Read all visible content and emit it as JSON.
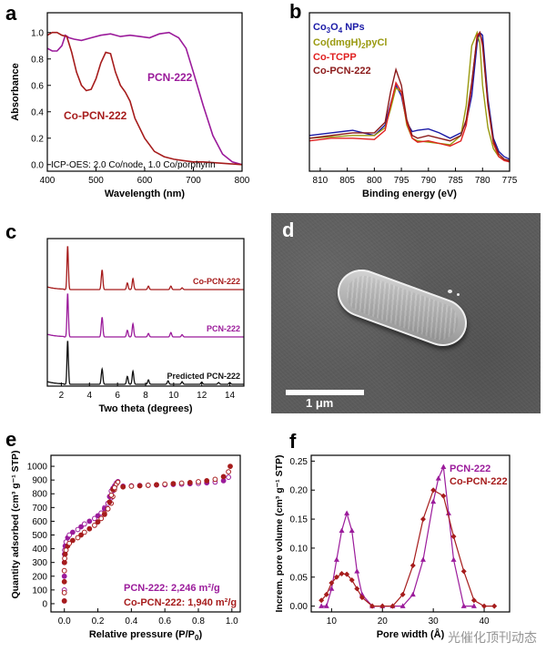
{
  "chart_data": [
    {
      "panel": "a",
      "type": "line",
      "xlabel": "Wavelength (nm)",
      "ylabel": "Absorbance",
      "xlim": [
        400,
        800
      ],
      "ylim": [
        -0.05,
        1.15
      ],
      "xticks": [
        400,
        500,
        600,
        700,
        800
      ],
      "yticks": [
        0.0,
        0.2,
        0.4,
        0.6,
        0.8,
        1.0
      ],
      "annotation": "ICP-OES: 2.0 Co/node, 1.0 Co/porphyrin",
      "series": [
        {
          "name": "PCN-222",
          "color": "#9b1b9b",
          "x": [
            400,
            410,
            420,
            430,
            437,
            445,
            455,
            470,
            490,
            510,
            530,
            550,
            570,
            590,
            610,
            630,
            650,
            660,
            670,
            685,
            700,
            720,
            740,
            760,
            780,
            800
          ],
          "y": [
            0.88,
            0.86,
            0.86,
            0.9,
            0.98,
            0.96,
            0.95,
            0.94,
            0.96,
            0.98,
            0.99,
            0.97,
            0.98,
            0.97,
            0.96,
            0.99,
            1.0,
            0.98,
            0.96,
            0.88,
            0.7,
            0.45,
            0.22,
            0.08,
            0.02,
            0.0
          ]
        },
        {
          "name": "Co-PCN-222",
          "color": "#a61c1c",
          "x": [
            400,
            410,
            420,
            430,
            440,
            450,
            460,
            470,
            480,
            490,
            500,
            510,
            520,
            530,
            540,
            550,
            560,
            570,
            580,
            600,
            620,
            640,
            660,
            680,
            700,
            720,
            760,
            800
          ],
          "y": [
            0.98,
            1.0,
            1.0,
            0.98,
            0.97,
            0.85,
            0.7,
            0.6,
            0.56,
            0.57,
            0.65,
            0.77,
            0.85,
            0.84,
            0.7,
            0.6,
            0.55,
            0.48,
            0.35,
            0.2,
            0.1,
            0.06,
            0.04,
            0.03,
            0.02,
            0.02,
            0.01,
            0.0
          ]
        }
      ]
    },
    {
      "panel": "b",
      "type": "line",
      "xlabel": "Binding energy (eV)",
      "xlim": [
        812,
        775
      ],
      "xticks": [
        810,
        805,
        800,
        795,
        790,
        785,
        780,
        775
      ],
      "series": [
        {
          "name": "Co3O4 NPs",
          "color": "#1a1aa6",
          "x": [
            812,
            808,
            804,
            800,
            798,
            797,
            796,
            795,
            794,
            793,
            792,
            790,
            788,
            786,
            784,
            783,
            782,
            781,
            780.5,
            780,
            779,
            778,
            777,
            776,
            775
          ],
          "y": [
            0.22,
            0.24,
            0.26,
            0.22,
            0.3,
            0.46,
            0.6,
            0.52,
            0.32,
            0.25,
            0.26,
            0.27,
            0.24,
            0.2,
            0.24,
            0.32,
            0.52,
            0.92,
            1.0,
            0.98,
            0.5,
            0.2,
            0.1,
            0.06,
            0.04
          ]
        },
        {
          "name": "Co(dmgH)2pyCl",
          "color": "#9a9a10",
          "x": [
            812,
            808,
            804,
            800,
            798,
            797,
            796,
            795,
            794,
            793,
            792,
            790,
            788,
            786,
            784,
            783,
            782,
            781,
            780.5,
            780,
            779,
            778,
            777,
            776,
            775
          ],
          "y": [
            0.2,
            0.21,
            0.22,
            0.22,
            0.28,
            0.42,
            0.58,
            0.55,
            0.3,
            0.2,
            0.18,
            0.17,
            0.16,
            0.15,
            0.22,
            0.45,
            0.9,
            1.0,
            0.92,
            0.6,
            0.28,
            0.12,
            0.06,
            0.04,
            0.03
          ]
        },
        {
          "name": "Co-TCPP",
          "color": "#e02020",
          "x": [
            812,
            808,
            804,
            800,
            798,
            797,
            796,
            795,
            794,
            793,
            792,
            790,
            788,
            786,
            784,
            783,
            782,
            781,
            780.5,
            780,
            779,
            778,
            777,
            776,
            775
          ],
          "y": [
            0.18,
            0.2,
            0.2,
            0.19,
            0.26,
            0.45,
            0.62,
            0.55,
            0.32,
            0.2,
            0.17,
            0.18,
            0.16,
            0.14,
            0.18,
            0.3,
            0.6,
            0.98,
            1.0,
            0.9,
            0.45,
            0.16,
            0.06,
            0.03,
            0.02
          ]
        },
        {
          "name": "Co-PCN-222",
          "color": "#8b1a1a",
          "x": [
            812,
            808,
            804,
            800,
            798,
            797,
            796,
            795,
            794,
            793,
            792,
            790,
            788,
            786,
            784,
            783,
            782,
            781,
            780.5,
            780,
            779,
            778,
            777,
            776,
            775
          ],
          "y": [
            0.2,
            0.22,
            0.24,
            0.24,
            0.32,
            0.55,
            0.72,
            0.6,
            0.34,
            0.22,
            0.2,
            0.22,
            0.2,
            0.18,
            0.22,
            0.34,
            0.62,
            0.96,
            1.0,
            0.92,
            0.46,
            0.18,
            0.08,
            0.04,
            0.03
          ]
        }
      ]
    },
    {
      "panel": "c",
      "type": "line",
      "xlabel": "Two theta (degrees)",
      "xlim": [
        1,
        15
      ],
      "xticks": [
        2,
        4,
        6,
        8,
        10,
        12,
        14
      ],
      "series": [
        {
          "name": "Co-PCN-222",
          "color": "#a61c1c",
          "offset": 2.0,
          "peaks": [
            [
              2.45,
              1.0
            ],
            [
              4.9,
              0.45
            ],
            [
              6.7,
              0.15
            ],
            [
              7.1,
              0.25
            ],
            [
              8.2,
              0.08
            ],
            [
              9.8,
              0.08
            ],
            [
              10.6,
              0.04
            ]
          ]
        },
        {
          "name": "PCN-222",
          "color": "#9b1b9b",
          "offset": 1.0,
          "peaks": [
            [
              2.45,
              1.0
            ],
            [
              4.9,
              0.45
            ],
            [
              6.7,
              0.15
            ],
            [
              7.1,
              0.3
            ],
            [
              8.2,
              0.08
            ],
            [
              9.8,
              0.1
            ],
            [
              10.6,
              0.05
            ]
          ]
        },
        {
          "name": "Predicted PCN-222",
          "color": "#111111",
          "offset": 0.0,
          "peaks": [
            [
              2.45,
              1.0
            ],
            [
              4.9,
              0.35
            ],
            [
              6.7,
              0.18
            ],
            [
              7.1,
              0.3
            ],
            [
              8.2,
              0.1
            ],
            [
              9.6,
              0.08
            ],
            [
              10.6,
              0.06
            ],
            [
              12.0,
              0.05
            ],
            [
              13.2,
              0.04
            ],
            [
              14.0,
              0.04
            ]
          ]
        }
      ]
    },
    {
      "panel": "e",
      "type": "scatter",
      "xlabel": "Relative pressure (P/P",
      "xlabel_sub": "0",
      "xlabel_end": ")",
      "ylabel": "Quantity adsorbed (cm³ g⁻¹ STP)",
      "xlim": [
        -0.08,
        1.05
      ],
      "ylim": [
        -60,
        1080
      ],
      "xticks": [
        0.0,
        0.2,
        0.4,
        0.6,
        0.8,
        1.0
      ],
      "yticks": [
        0,
        100,
        200,
        300,
        400,
        500,
        600,
        700,
        800,
        900,
        1000
      ],
      "series": [
        {
          "name": "PCN-222",
          "color": "#9b1b9b",
          "x": [
            0.0,
            0.0,
            0.0,
            0.0,
            0.001,
            0.002,
            0.005,
            0.01,
            0.02,
            0.03,
            0.05,
            0.08,
            0.1,
            0.12,
            0.15,
            0.18,
            0.2,
            0.22,
            0.24,
            0.26,
            0.27,
            0.28,
            0.29,
            0.3,
            0.35,
            0.4,
            0.45,
            0.5,
            0.55,
            0.6,
            0.65,
            0.7,
            0.75,
            0.8,
            0.85,
            0.9,
            0.95,
            0.98
          ],
          "y": [
            20,
            100,
            200,
            300,
            360,
            390,
            420,
            450,
            480,
            500,
            520,
            540,
            560,
            580,
            600,
            620,
            640,
            660,
            690,
            730,
            780,
            820,
            840,
            850,
            855,
            858,
            860,
            862,
            864,
            866,
            868,
            870,
            873,
            876,
            880,
            885,
            895,
            920
          ],
          "label_text": "PCN-222: 2,246 m²/g"
        },
        {
          "name": "Co-PCN-222",
          "color": "#a61c1c",
          "x": [
            0.0,
            0.0,
            0.0,
            0.0,
            0.001,
            0.002,
            0.005,
            0.01,
            0.02,
            0.03,
            0.05,
            0.08,
            0.1,
            0.12,
            0.15,
            0.18,
            0.2,
            0.22,
            0.24,
            0.26,
            0.27,
            0.28,
            0.29,
            0.3,
            0.35,
            0.4,
            0.45,
            0.5,
            0.55,
            0.6,
            0.65,
            0.7,
            0.75,
            0.8,
            0.85,
            0.9,
            0.95,
            0.98,
            0.99
          ],
          "y": [
            20,
            80,
            160,
            240,
            300,
            330,
            360,
            390,
            420,
            440,
            460,
            480,
            500,
            520,
            545,
            570,
            595,
            620,
            650,
            690,
            740,
            790,
            830,
            845,
            850,
            855,
            858,
            862,
            866,
            870,
            874,
            878,
            882,
            888,
            895,
            905,
            925,
            960,
            1000
          ],
          "label_text": "Co-PCN-222: 1,940 m²/g"
        }
      ]
    },
    {
      "panel": "f",
      "type": "line",
      "xlabel": "Pore width (Å)",
      "ylabel": "Increm. pore volume (cm³ g⁻¹ STP)",
      "xlim": [
        6,
        45
      ],
      "ylim": [
        -0.01,
        0.26
      ],
      "xticks": [
        10,
        20,
        30,
        40
      ],
      "yticks": [
        0.0,
        0.05,
        0.1,
        0.15,
        0.2,
        0.25
      ],
      "series": [
        {
          "name": "PCN-222",
          "color": "#9b1b9b",
          "marker": "triangle",
          "x": [
            8,
            9,
            10,
            11,
            12,
            13,
            14,
            15,
            16,
            18,
            20,
            22,
            24,
            26,
            28,
            30,
            31,
            32,
            33,
            34,
            36,
            38
          ],
          "y": [
            0.0,
            0.0,
            0.03,
            0.08,
            0.13,
            0.16,
            0.13,
            0.06,
            0.02,
            0.0,
            0.0,
            0.0,
            0.0,
            0.02,
            0.08,
            0.18,
            0.22,
            0.24,
            0.16,
            0.08,
            0.0,
            0.0
          ]
        },
        {
          "name": "Co-PCN-222",
          "color": "#a61c1c",
          "marker": "diamond",
          "x": [
            8,
            9,
            10,
            11,
            12,
            13,
            14,
            15,
            16,
            18,
            20,
            22,
            24,
            26,
            28,
            30,
            32,
            34,
            36,
            38,
            40,
            42
          ],
          "y": [
            0.01,
            0.02,
            0.04,
            0.05,
            0.056,
            0.055,
            0.045,
            0.03,
            0.015,
            0.0,
            0.0,
            0.0,
            0.02,
            0.07,
            0.15,
            0.2,
            0.19,
            0.12,
            0.06,
            0.01,
            0.0,
            0.0
          ]
        }
      ]
    }
  ],
  "panel_letters": {
    "a": "a",
    "b": "b",
    "c": "c",
    "d": "d",
    "e": "e",
    "f": "f"
  },
  "sem": {
    "scale_label": "1 μm"
  },
  "watermark": "光催化顶刊动态",
  "colors": {
    "pcn222": "#9b1b9b",
    "copcn222": "#a61c1c",
    "co3o4": "#1a1aa6",
    "codmgh": "#9a9a10",
    "cotcpp": "#e02020",
    "copcn222_xps": "#8b1a1a",
    "predicted": "#111111"
  }
}
